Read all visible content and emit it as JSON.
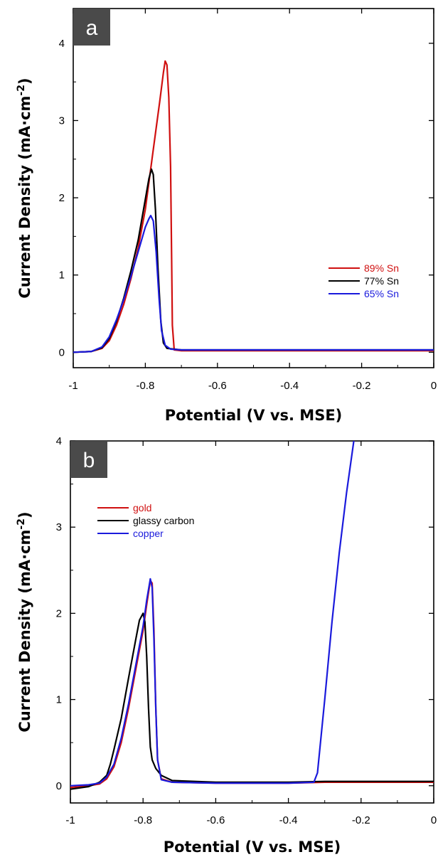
{
  "chart_data": [
    {
      "type": "line",
      "panel_label": "a",
      "xlabel": "Potential (V vs. MSE)",
      "ylabel": "Current Density (mA·cm",
      "ylabel_sup": "-2",
      "ylabel_close": ")",
      "xlim": [
        -1,
        0
      ],
      "ylim": [
        -0.2,
        4.45
      ],
      "xticks": [
        -1,
        -0.8,
        -0.6,
        -0.4,
        -0.2,
        0
      ],
      "xtick_labels": [
        "-1",
        "-0.8",
        "-0.6",
        "-0.4",
        "-0.2",
        "0"
      ],
      "yticks": [
        0,
        1,
        2,
        3,
        4
      ],
      "ytick_labels": [
        "0",
        "1",
        "2",
        "3",
        "4"
      ],
      "legend_position": "center-right",
      "series": [
        {
          "name": "89% Sn",
          "color": "#d01010",
          "points": [
            [
              -1,
              0
            ],
            [
              -0.95,
              0.01
            ],
            [
              -0.92,
              0.05
            ],
            [
              -0.9,
              0.15
            ],
            [
              -0.88,
              0.35
            ],
            [
              -0.86,
              0.62
            ],
            [
              -0.84,
              0.95
            ],
            [
              -0.82,
              1.35
            ],
            [
              -0.8,
              1.85
            ],
            [
              -0.78,
              2.55
            ],
            [
              -0.76,
              3.25
            ],
            [
              -0.75,
              3.62
            ],
            [
              -0.745,
              3.77
            ],
            [
              -0.74,
              3.72
            ],
            [
              -0.735,
              3.3
            ],
            [
              -0.73,
              2.4
            ],
            [
              -0.727,
              1.2
            ],
            [
              -0.725,
              0.35
            ],
            [
              -0.72,
              0.03
            ],
            [
              -0.7,
              0.02
            ],
            [
              -0.5,
              0.02
            ],
            [
              -0.3,
              0.02
            ],
            [
              0,
              0.02
            ]
          ]
        },
        {
          "name": "77% Sn",
          "color": "#000000",
          "points": [
            [
              -1,
              0
            ],
            [
              -0.95,
              0.01
            ],
            [
              -0.92,
              0.06
            ],
            [
              -0.9,
              0.18
            ],
            [
              -0.88,
              0.4
            ],
            [
              -0.86,
              0.7
            ],
            [
              -0.84,
              1.05
            ],
            [
              -0.82,
              1.45
            ],
            [
              -0.8,
              1.98
            ],
            [
              -0.79,
              2.25
            ],
            [
              -0.783,
              2.37
            ],
            [
              -0.778,
              2.3
            ],
            [
              -0.772,
              1.85
            ],
            [
              -0.765,
              1.1
            ],
            [
              -0.757,
              0.4
            ],
            [
              -0.75,
              0.12
            ],
            [
              -0.74,
              0.05
            ],
            [
              -0.7,
              0.03
            ],
            [
              -0.5,
              0.03
            ],
            [
              -0.3,
              0.03
            ],
            [
              0,
              0.03
            ]
          ]
        },
        {
          "name": "65% Sn",
          "color": "#1a1adc",
          "points": [
            [
              -1,
              0
            ],
            [
              -0.95,
              0.01
            ],
            [
              -0.92,
              0.07
            ],
            [
              -0.9,
              0.2
            ],
            [
              -0.88,
              0.42
            ],
            [
              -0.86,
              0.68
            ],
            [
              -0.84,
              0.98
            ],
            [
              -0.82,
              1.3
            ],
            [
              -0.8,
              1.62
            ],
            [
              -0.79,
              1.73
            ],
            [
              -0.785,
              1.77
            ],
            [
              -0.778,
              1.7
            ],
            [
              -0.77,
              1.3
            ],
            [
              -0.762,
              0.7
            ],
            [
              -0.755,
              0.28
            ],
            [
              -0.745,
              0.09
            ],
            [
              -0.73,
              0.04
            ],
            [
              -0.7,
              0.03
            ],
            [
              -0.5,
              0.03
            ],
            [
              -0.3,
              0.03
            ],
            [
              0,
              0.03
            ]
          ]
        }
      ]
    },
    {
      "type": "line",
      "panel_label": "b",
      "xlabel": "Potential (V vs. MSE)",
      "ylabel": "Current Density (mA·cm",
      "ylabel_sup": "-2",
      "ylabel_close": ")",
      "xlim": [
        -1,
        0
      ],
      "ylim": [
        -0.2,
        4
      ],
      "xticks": [
        -1,
        -0.8,
        -0.6,
        -0.4,
        -0.2,
        0
      ],
      "xtick_labels": [
        "-1",
        "-0.8",
        "-0.6",
        "-0.4",
        "-0.2",
        "0"
      ],
      "yticks": [
        0,
        1,
        2,
        3,
        4
      ],
      "ytick_labels": [
        "0",
        "1",
        "2",
        "3",
        "4"
      ],
      "legend_position": "top-left",
      "series": [
        {
          "name": "gold",
          "color": "#d01010",
          "points": [
            [
              -1,
              -0.02
            ],
            [
              -0.95,
              0.0
            ],
            [
              -0.92,
              0.02
            ],
            [
              -0.9,
              0.08
            ],
            [
              -0.88,
              0.22
            ],
            [
              -0.86,
              0.5
            ],
            [
              -0.84,
              0.9
            ],
            [
              -0.82,
              1.35
            ],
            [
              -0.8,
              1.8
            ],
            [
              -0.79,
              2.1
            ],
            [
              -0.78,
              2.38
            ],
            [
              -0.775,
              2.35
            ],
            [
              -0.77,
              1.8
            ],
            [
              -0.765,
              0.9
            ],
            [
              -0.76,
              0.3
            ],
            [
              -0.75,
              0.08
            ],
            [
              -0.72,
              0.04
            ],
            [
              -0.6,
              0.03
            ],
            [
              -0.4,
              0.03
            ],
            [
              -0.3,
              0.04
            ],
            [
              -0.2,
              0.04
            ],
            [
              0,
              0.04
            ]
          ]
        },
        {
          "name": "glassy carbon",
          "color": "#000000",
          "points": [
            [
              -1,
              -0.04
            ],
            [
              -0.95,
              -0.01
            ],
            [
              -0.92,
              0.04
            ],
            [
              -0.9,
              0.12
            ],
            [
              -0.89,
              0.25
            ],
            [
              -0.88,
              0.42
            ],
            [
              -0.86,
              0.78
            ],
            [
              -0.84,
              1.25
            ],
            [
              -0.82,
              1.7
            ],
            [
              -0.81,
              1.92
            ],
            [
              -0.8,
              2.0
            ],
            [
              -0.795,
              1.9
            ],
            [
              -0.79,
              1.5
            ],
            [
              -0.785,
              0.9
            ],
            [
              -0.78,
              0.45
            ],
            [
              -0.775,
              0.3
            ],
            [
              -0.765,
              0.2
            ],
            [
              -0.75,
              0.12
            ],
            [
              -0.72,
              0.06
            ],
            [
              -0.6,
              0.04
            ],
            [
              -0.4,
              0.04
            ],
            [
              -0.3,
              0.05
            ],
            [
              -0.2,
              0.05
            ],
            [
              0,
              0.05
            ]
          ]
        },
        {
          "name": "copper",
          "color": "#1a1adc",
          "points": [
            [
              -1,
              0.0
            ],
            [
              -0.95,
              0.01
            ],
            [
              -0.92,
              0.03
            ],
            [
              -0.9,
              0.1
            ],
            [
              -0.88,
              0.25
            ],
            [
              -0.86,
              0.55
            ],
            [
              -0.84,
              0.95
            ],
            [
              -0.82,
              1.4
            ],
            [
              -0.8,
              1.85
            ],
            [
              -0.79,
              2.15
            ],
            [
              -0.78,
              2.4
            ],
            [
              -0.775,
              2.3
            ],
            [
              -0.77,
              1.7
            ],
            [
              -0.765,
              0.9
            ],
            [
              -0.76,
              0.3
            ],
            [
              -0.75,
              0.07
            ],
            [
              -0.72,
              0.04
            ],
            [
              -0.6,
              0.03
            ],
            [
              -0.4,
              0.03
            ],
            [
              -0.33,
              0.04
            ],
            [
              -0.32,
              0.15
            ],
            [
              -0.3,
              1.0
            ],
            [
              -0.28,
              1.9
            ],
            [
              -0.26,
              2.7
            ],
            [
              -0.24,
              3.4
            ],
            [
              -0.22,
              4.0
            ]
          ]
        }
      ]
    }
  ]
}
